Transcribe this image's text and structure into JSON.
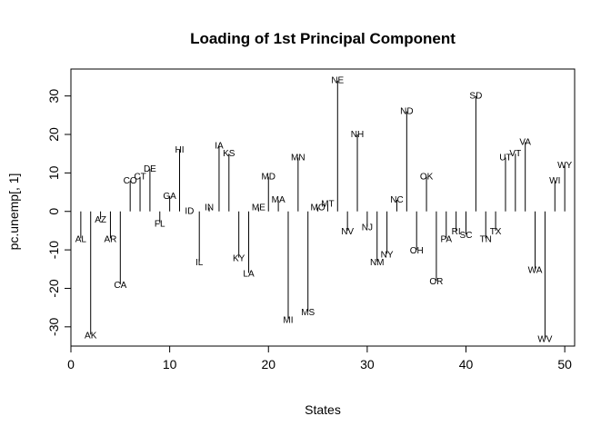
{
  "chart_data": {
    "type": "bar",
    "title": "Loading of 1st Principal Component",
    "xlabel": "States",
    "ylabel": "pc.unemp[, 1]",
    "xlim": [
      0,
      51
    ],
    "ylim": [
      -35,
      37
    ],
    "xticks": [
      0,
      10,
      20,
      30,
      40,
      50
    ],
    "yticks": [
      -30,
      -20,
      -10,
      0,
      10,
      20,
      30
    ],
    "grid": false,
    "legend": "none",
    "line_color": "#000000",
    "states": [
      {
        "x": 1,
        "label": "AL",
        "value": -7
      },
      {
        "x": 2,
        "label": "AK",
        "value": -32
      },
      {
        "x": 3,
        "label": "AZ",
        "value": -2
      },
      {
        "x": 4,
        "label": "AR",
        "value": -7
      },
      {
        "x": 5,
        "label": "CA",
        "value": -19
      },
      {
        "x": 6,
        "label": "CO",
        "value": 8
      },
      {
        "x": 7,
        "label": "CT",
        "value": 9
      },
      {
        "x": 8,
        "label": "DE",
        "value": 11
      },
      {
        "x": 9,
        "label": "FL",
        "value": -3
      },
      {
        "x": 10,
        "label": "GA",
        "value": 4
      },
      {
        "x": 11,
        "label": "HI",
        "value": 16
      },
      {
        "x": 12,
        "label": "ID",
        "value": 0
      },
      {
        "x": 13,
        "label": "IL",
        "value": -13
      },
      {
        "x": 14,
        "label": "IN",
        "value": 1
      },
      {
        "x": 15,
        "label": "IA",
        "value": 17
      },
      {
        "x": 16,
        "label": "KS",
        "value": 15
      },
      {
        "x": 17,
        "label": "KY",
        "value": -12
      },
      {
        "x": 18,
        "label": "LA",
        "value": -16
      },
      {
        "x": 19,
        "label": "ME",
        "value": 1
      },
      {
        "x": 20,
        "label": "MD",
        "value": 9
      },
      {
        "x": 21,
        "label": "MA",
        "value": 3
      },
      {
        "x": 22,
        "label": "MI",
        "value": -28
      },
      {
        "x": 23,
        "label": "MN",
        "value": 14
      },
      {
        "x": 24,
        "label": "MS",
        "value": -26
      },
      {
        "x": 25,
        "label": "MO",
        "value": 1
      },
      {
        "x": 26,
        "label": "MT",
        "value": 2
      },
      {
        "x": 27,
        "label": "NE",
        "value": 34
      },
      {
        "x": 28,
        "label": "NV",
        "value": -5
      },
      {
        "x": 29,
        "label": "NH",
        "value": 20
      },
      {
        "x": 30,
        "label": "NJ",
        "value": -4
      },
      {
        "x": 31,
        "label": "NM",
        "value": -13
      },
      {
        "x": 32,
        "label": "NY",
        "value": -11
      },
      {
        "x": 33,
        "label": "NC",
        "value": 3
      },
      {
        "x": 34,
        "label": "ND",
        "value": 26
      },
      {
        "x": 35,
        "label": "OH",
        "value": -10
      },
      {
        "x": 36,
        "label": "OK",
        "value": 9
      },
      {
        "x": 37,
        "label": "OR",
        "value": -18
      },
      {
        "x": 38,
        "label": "PA",
        "value": -7
      },
      {
        "x": 39,
        "label": "RI",
        "value": -5
      },
      {
        "x": 40,
        "label": "SC",
        "value": -6
      },
      {
        "x": 41,
        "label": "SD",
        "value": 30
      },
      {
        "x": 42,
        "label": "TN",
        "value": -7
      },
      {
        "x": 43,
        "label": "TX",
        "value": -5
      },
      {
        "x": 44,
        "label": "UT",
        "value": 14
      },
      {
        "x": 45,
        "label": "VT",
        "value": 15
      },
      {
        "x": 46,
        "label": "VA",
        "value": 18
      },
      {
        "x": 47,
        "label": "WA",
        "value": -15
      },
      {
        "x": 48,
        "label": "WV",
        "value": -33
      },
      {
        "x": 49,
        "label": "WI",
        "value": 8
      },
      {
        "x": 50,
        "label": "WY",
        "value": 12
      }
    ]
  }
}
